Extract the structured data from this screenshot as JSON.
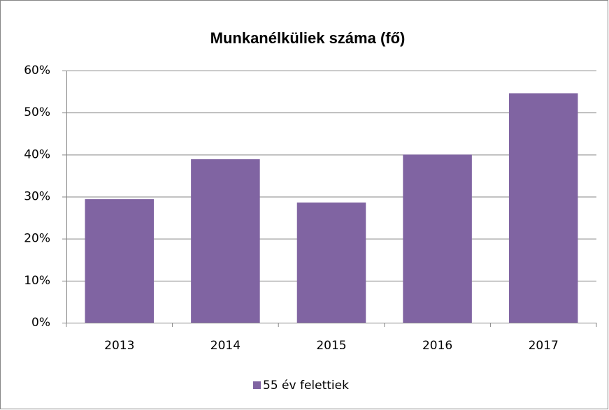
{
  "chart_data": {
    "type": "bar",
    "title": "Munkanélküliek száma (fő)",
    "categories": [
      "2013",
      "2014",
      "2015",
      "2016",
      "2017"
    ],
    "series": [
      {
        "name": "55 év felettiek",
        "color": "#8064a2",
        "values": [
          29.4,
          38.9,
          28.6,
          40.0,
          54.6
        ]
      }
    ],
    "ylim": [
      0,
      60
    ],
    "yticks": [
      {
        "value": 0,
        "label": "0%"
      },
      {
        "value": 10,
        "label": "10%"
      },
      {
        "value": 20,
        "label": "20%"
      },
      {
        "value": 30,
        "label": "30%"
      },
      {
        "value": 40,
        "label": "40%"
      },
      {
        "value": 50,
        "label": "50%"
      },
      {
        "value": 60,
        "label": "60%"
      }
    ],
    "grid": true,
    "legend": "bottom"
  }
}
